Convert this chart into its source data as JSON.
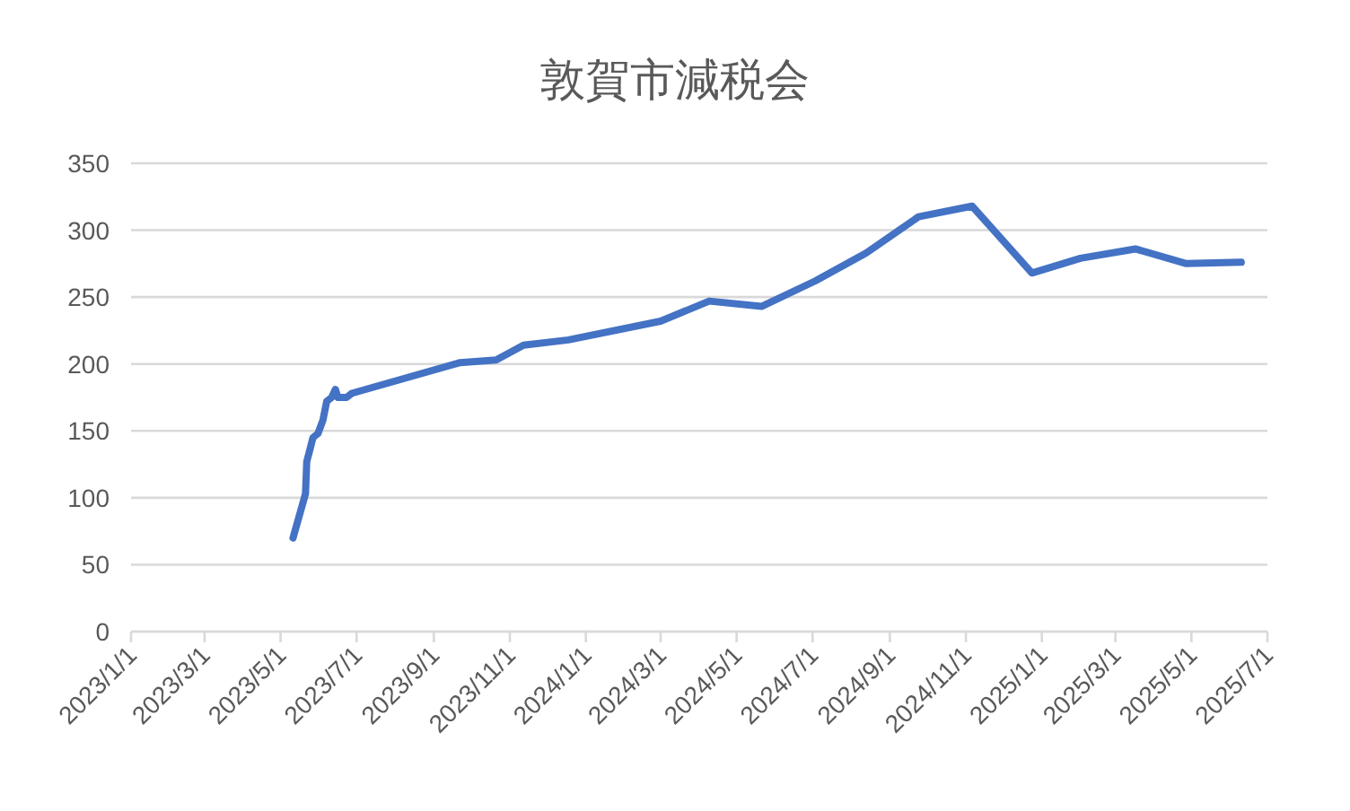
{
  "chart_data": {
    "type": "line",
    "title": "敦賀市減税会",
    "x": [
      "2023-05-11",
      "2023-05-21",
      "2023-05-22",
      "2023-05-24",
      "2023-05-27",
      "2023-05-31",
      "2023-06-04",
      "2023-06-07",
      "2023-06-11",
      "2023-06-14",
      "2023-06-16",
      "2023-06-23",
      "2023-06-27",
      "2023-09-22",
      "2023-10-21",
      "2023-11-12",
      "2023-12-18",
      "2024-03-01",
      "2024-04-09",
      "2024-05-21",
      "2024-07-03",
      "2024-08-13",
      "2024-09-24",
      "2024-11-06",
      "2024-12-24",
      "2025-02-01",
      "2025-03-17",
      "2025-04-27",
      "2025-06-10"
    ],
    "series": [
      {
        "color": "#4472c4",
        "values": [
          70,
          103,
          127,
          134,
          145,
          148,
          158,
          172,
          175,
          181,
          175,
          175,
          178,
          201,
          203,
          214,
          218,
          232,
          247,
          243,
          262,
          283,
          310,
          318,
          268,
          279,
          286,
          275,
          276
        ]
      }
    ],
    "xlim": [
      "2023-01-01",
      "2025-07-01"
    ],
    "xticks": [
      {
        "value": "2023-01-01",
        "label": "2023/1/1"
      },
      {
        "value": "2023-03-01",
        "label": "2023/3/1"
      },
      {
        "value": "2023-05-01",
        "label": "2023/5/1"
      },
      {
        "value": "2023-07-01",
        "label": "2023/7/1"
      },
      {
        "value": "2023-09-01",
        "label": "2023/9/1"
      },
      {
        "value": "2023-11-01",
        "label": "2023/11/1"
      },
      {
        "value": "2024-01-01",
        "label": "2024/1/1"
      },
      {
        "value": "2024-03-01",
        "label": "2024/3/1"
      },
      {
        "value": "2024-05-01",
        "label": "2024/5/1"
      },
      {
        "value": "2024-07-01",
        "label": "2024/7/1"
      },
      {
        "value": "2024-09-01",
        "label": "2024/9/1"
      },
      {
        "value": "2024-11-01",
        "label": "2024/11/1"
      },
      {
        "value": "2025-01-01",
        "label": "2025/1/1"
      },
      {
        "value": "2025-03-01",
        "label": "2025/3/1"
      },
      {
        "value": "2025-05-01",
        "label": "2025/5/1"
      },
      {
        "value": "2025-07-01",
        "label": "2025/7/1"
      }
    ],
    "ylim": [
      0,
      350
    ],
    "yticks": [
      0,
      50,
      100,
      150,
      200,
      250,
      300,
      350
    ],
    "grid": "y",
    "line_style": "solid",
    "marker": "none"
  }
}
